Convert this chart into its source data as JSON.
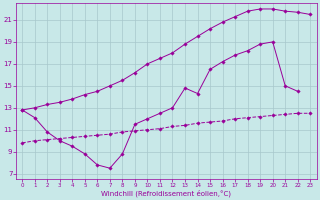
{
  "xlabel": "Windchill (Refroidissement éolien,°C)",
  "bg_color": "#c8e8e8",
  "grid_color": "#a8c8cc",
  "line_color": "#990099",
  "xlim": [
    -0.5,
    23.5
  ],
  "ylim": [
    6.5,
    22.5
  ],
  "xticks": [
    0,
    1,
    2,
    3,
    4,
    5,
    6,
    7,
    8,
    9,
    10,
    11,
    12,
    13,
    14,
    15,
    16,
    17,
    18,
    19,
    20,
    21,
    22,
    23
  ],
  "yticks": [
    7,
    9,
    11,
    13,
    15,
    17,
    19,
    21
  ],
  "line1_x": [
    0,
    1,
    2,
    3,
    4,
    5,
    6,
    7,
    8,
    9,
    10,
    11,
    12,
    13,
    14,
    15,
    16,
    17,
    18,
    19,
    20,
    21,
    22
  ],
  "line1_y": [
    12.8,
    12.1,
    10.8,
    10.0,
    9.5,
    8.8,
    7.8,
    7.5,
    8.8,
    11.5,
    12.0,
    12.5,
    13.0,
    14.8,
    14.3,
    16.5,
    17.2,
    17.8,
    18.2,
    18.8,
    19.0,
    15.0,
    14.5
  ],
  "line2_x": [
    0,
    1,
    2,
    3,
    4,
    5,
    6,
    7,
    8,
    9,
    10,
    11,
    12,
    13,
    14,
    15,
    16,
    17,
    18,
    19,
    20,
    21,
    22,
    23
  ],
  "line2_y": [
    12.8,
    13.0,
    13.3,
    13.5,
    13.8,
    14.2,
    14.5,
    15.0,
    15.5,
    16.2,
    17.0,
    17.5,
    18.0,
    18.8,
    19.5,
    20.2,
    20.8,
    21.3,
    21.8,
    22.0,
    22.0,
    21.8,
    21.7,
    21.5
  ],
  "line3_x": [
    0,
    1,
    2,
    3,
    4,
    5,
    6,
    7,
    8,
    9,
    10,
    11,
    12,
    13,
    14,
    15,
    16,
    17,
    18,
    19,
    20,
    21,
    22,
    23
  ],
  "line3_y": [
    9.8,
    10.0,
    10.1,
    10.2,
    10.3,
    10.4,
    10.5,
    10.6,
    10.8,
    10.9,
    11.0,
    11.1,
    11.3,
    11.4,
    11.6,
    11.7,
    11.8,
    12.0,
    12.1,
    12.2,
    12.3,
    12.4,
    12.5,
    12.5
  ]
}
